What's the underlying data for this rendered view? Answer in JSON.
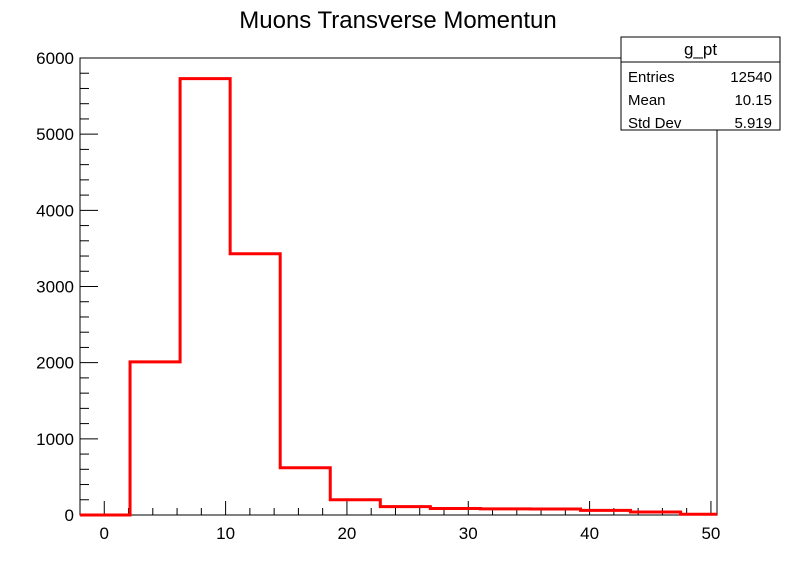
{
  "chart_data": {
    "type": "histogram",
    "title": "Muons Transverse Momentun",
    "xlabel": "",
    "ylabel": "",
    "xlim": [
      -2,
      50.5
    ],
    "ylim": [
      0,
      6000
    ],
    "x_ticks": [
      0,
      10,
      20,
      30,
      40,
      50
    ],
    "y_ticks": [
      0,
      1000,
      2000,
      3000,
      4000,
      5000,
      6000
    ],
    "bin_edges": [
      -2,
      2.125,
      6.25,
      10.375,
      14.5,
      18.625,
      22.75,
      26.875,
      31,
      35.125,
      39.25,
      43.375,
      47.5
    ],
    "values": [
      0,
      2010,
      5730,
      3430,
      620,
      200,
      110,
      85,
      80,
      78,
      60,
      40
    ],
    "tail_value": 10,
    "line_color": "#ff0000",
    "stats": {
      "name": "g_pt",
      "rows": [
        {
          "label": "Entries",
          "value": "12540"
        },
        {
          "label": "Mean",
          "value": "10.15"
        },
        {
          "label": "Std Dev",
          "value": "5.919"
        }
      ]
    }
  }
}
